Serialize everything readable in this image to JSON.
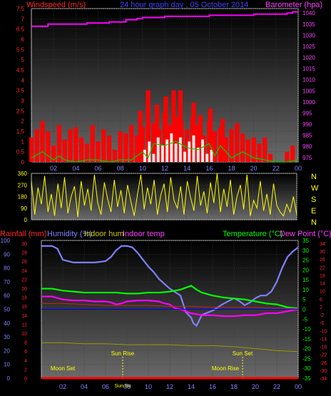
{
  "chart_data": [
    {
      "type": "bar",
      "title": "24 hour graph day , 05 October 2014",
      "left_label": "Windspeed (m/s)",
      "right_label": "Barometer (hpa)",
      "hour_labels": [
        "02",
        "04",
        "06",
        "08",
        "10",
        "12",
        "14",
        "16",
        "18",
        "20",
        "22",
        "00"
      ],
      "y_left_ticks": [
        "7.5",
        "7",
        "6.5",
        "6",
        "5.5",
        "5",
        "4.5",
        "4",
        "3.5",
        "3",
        "2.5",
        "2",
        "1.5",
        "1",
        "0.5",
        "0"
      ],
      "y_right_ticks": [
        "1040",
        "1035",
        "1030",
        "1025",
        "1020",
        "1015",
        "1010",
        "1005",
        "1000",
        "995",
        "990",
        "985",
        "980",
        "975"
      ],
      "ylim_left": [
        0,
        7.5
      ],
      "ylim_right": [
        973,
        1042
      ],
      "series": [
        {
          "kind": "bars",
          "color": "#ff0000",
          "x": [
            0,
            0.5,
            1,
            1.5,
            2,
            2.5,
            3,
            3.5,
            4,
            4.5,
            5,
            5.5,
            6,
            6.5,
            7,
            7.5,
            8,
            8.5,
            9,
            9.5,
            10,
            10.5,
            11,
            11.5,
            12,
            12.5,
            13,
            13.5,
            14,
            14.5,
            15,
            15.5,
            16,
            16.5,
            17,
            17.5,
            18,
            18.5,
            19,
            19.5,
            20,
            20.5,
            21,
            21.5,
            22,
            22.5,
            23,
            23.5,
            24
          ],
          "values": [
            1.2,
            1.6,
            2.0,
            1.5,
            0.8,
            1.8,
            1.1,
            1.6,
            1.7,
            1.2,
            0.9,
            1.8,
            1.0,
            1.6,
            1.3,
            0.6,
            1.5,
            1.4,
            1.8,
            1.3,
            1.7,
            2.0,
            1.9,
            1.6,
            2.4,
            1.8,
            2.2,
            2.0,
            1.6,
            2.2,
            1.8,
            1.3,
            2.0,
            1.5,
            1.7,
            1.2,
            1.6,
            1.9,
            1.4,
            1.1,
            1.2,
            0.9,
            1.2,
            0.4,
            0.0,
            0.0,
            0.5,
            0.8,
            0.0
          ]
        },
        {
          "kind": "bars",
          "color": "#ff0000",
          "x": [
            9.8,
            10.5,
            11.3,
            12.1,
            12.8,
            13.4,
            14.6,
            15.2,
            16.1,
            17.2
          ],
          "values": [
            2.5,
            3.5,
            2.8,
            3.2,
            3.5,
            3.5,
            2.9,
            2.3,
            2.6,
            2.1
          ]
        },
        {
          "kind": "bars",
          "color": "#ffffff",
          "x": [
            10.2,
            10.6,
            11.0,
            11.4,
            11.8,
            12.2,
            12.6,
            13.0,
            13.4,
            13.8,
            14.2,
            14.6,
            15.0,
            15.4,
            15.8,
            16.2
          ],
          "values": [
            0.6,
            1.0,
            0.4,
            1.2,
            0.8,
            1.1,
            1.4,
            0.9,
            1.2,
            0.5,
            1.0,
            1.3,
            0.7,
            1.1,
            0.4,
            0.6
          ]
        },
        {
          "kind": "line",
          "color": "#00cc00",
          "x": [
            0,
            1,
            2,
            2.5,
            3,
            4,
            5,
            6,
            7,
            8,
            9,
            10,
            10.5,
            11,
            12,
            13,
            14,
            15,
            16,
            16.5,
            17,
            18,
            19,
            20,
            21,
            22,
            23,
            24
          ],
          "values": [
            0.2,
            0.5,
            0.1,
            0.3,
            0.1,
            0.0,
            0.1,
            0.1,
            0.0,
            0.1,
            0.1,
            0.5,
            0.2,
            0.9,
            0.8,
            1.0,
            0.7,
            0.6,
            0.9,
            0.3,
            0.8,
            0.2,
            0.5,
            0.2,
            0.1,
            0.0,
            0.0,
            0.1
          ]
        },
        {
          "kind": "line",
          "axis": "right",
          "color": "#ff00ff",
          "step": true,
          "x": [
            0,
            1,
            1.5,
            2,
            5,
            7,
            8,
            8.5,
            9,
            9.5,
            10,
            12,
            14,
            16,
            18,
            20,
            22,
            23,
            23.5,
            24
          ],
          "values": [
            1034,
            1034,
            1035,
            1035,
            1035.5,
            1036,
            1036,
            1037,
            1037,
            1037.5,
            1038,
            1038.5,
            1038.5,
            1039,
            1039,
            1039.5,
            1039.5,
            1040,
            1040.5,
            1040.5
          ]
        }
      ]
    },
    {
      "type": "line",
      "y_ticks": [
        "360",
        "270",
        "180",
        "90",
        "0"
      ],
      "direction_labels": [
        "N",
        "W",
        "S",
        "E",
        "N"
      ],
      "hour_labels": [
        "02",
        "04",
        "06",
        "08",
        "10",
        "12",
        "14",
        "16",
        "18",
        "20",
        "22",
        "00"
      ],
      "ylim": [
        0,
        360
      ],
      "series": [
        {
          "color": "#ffff00",
          "x": [
            0,
            0.3,
            0.6,
            0.9,
            1.2,
            1.5,
            1.8,
            2.1,
            2.4,
            2.7,
            3,
            3.3,
            3.6,
            3.9,
            4.2,
            4.5,
            4.8,
            5.1,
            5.4,
            5.7,
            6,
            6.3,
            6.6,
            6.9,
            7.2,
            7.5,
            7.8,
            8.1,
            8.4,
            8.7,
            9,
            9.3,
            9.6,
            9.9,
            10.2,
            10.5,
            10.8,
            11.1,
            11.4,
            11.7,
            12,
            12.3,
            12.6,
            12.9,
            13.2,
            13.5,
            13.8,
            14.1,
            14.4,
            14.7,
            15,
            15.3,
            15.6,
            15.9,
            16.2,
            16.5,
            16.8,
            17.1,
            17.4,
            17.7,
            18,
            18.3,
            18.6,
            18.9,
            19.2,
            19.5,
            19.8,
            20.1,
            20.4,
            20.7,
            21,
            21.3,
            21.6,
            21.9,
            22.2,
            22.5,
            22.8,
            23.1,
            23.4,
            23.7,
            24
          ],
          "values": [
            300,
            40,
            250,
            120,
            340,
            60,
            200,
            30,
            280,
            90,
            330,
            50,
            180,
            260,
            20,
            300,
            110,
            240,
            70,
            350,
            130,
            40,
            290,
            160,
            60,
            310,
            100,
            230,
            50,
            270,
            140,
            30,
            200,
            350,
            80,
            250,
            120,
            310,
            40,
            190,
            280,
            60,
            330,
            150,
            90,
            260,
            40,
            300,
            170,
            70,
            340,
            110,
            220,
            50,
            290,
            130,
            360,
            60,
            240,
            100,
            310,
            40,
            180,
            270,
            80,
            350,
            30,
            150,
            90,
            300,
            70,
            200,
            40,
            280,
            110,
            60,
            30,
            120,
            60,
            180,
            40
          ]
        }
      ]
    },
    {
      "type": "line",
      "top_labels": {
        "rainfall": "Rainfall (mm)",
        "humidity": "Humidity (%)",
        "indoor_hum": "Indoor hum",
        "indoor_temp": "Indoor temp",
        "temperature": "Temperature (°C)",
        "dew_point": "Dew Point (°C)"
      },
      "y_humidity_ticks": [
        "100",
        "90",
        "80",
        "70",
        "60",
        "50",
        "40",
        "30",
        "20",
        "10",
        "0"
      ],
      "y_rain_ticks": [
        "30",
        "28",
        "26",
        "24",
        "22",
        "20",
        "18",
        "16",
        "14",
        "12",
        "10",
        "8",
        "6",
        "4",
        "2",
        "0"
      ],
      "y_temp_ticks": [
        "35",
        "30",
        "25",
        "20",
        "15",
        "10",
        "5",
        "0",
        "-5",
        "-10",
        "-15",
        "-20",
        "-25",
        "-30",
        "-35"
      ],
      "y_dew_ticks": [
        "34",
        "32",
        "30",
        "28",
        "26",
        "24",
        "22",
        "20",
        "18",
        "16",
        "14",
        "12",
        "10",
        "8",
        "6",
        "4",
        "2",
        "0",
        "-2",
        "-4",
        "-6",
        "-8",
        "-10",
        "-12",
        "-14",
        "-16",
        "-18",
        "-20",
        "-22",
        "-24",
        "-26",
        "-28",
        "-30",
        "-32",
        "-34"
      ],
      "hour_labels": [
        "02",
        "04",
        "06",
        "08",
        "10",
        "12",
        "14",
        "16",
        "18",
        "20",
        "22",
        "00"
      ],
      "annotations": {
        "moon_set_1": "Moon Set",
        "sun_rise": "Sun Rise",
        "sun_set": "Sun Set",
        "moon_set_2": "Moon Rise",
        "sun_bottom": "Sun Bu"
      },
      "ylim_humidity": [
        0,
        100
      ],
      "ylim_temp": [
        -35,
        35
      ],
      "series": [
        {
          "name": "Humidity (%)",
          "axis": "humidity",
          "color": "#8080ff",
          "x": [
            0,
            1,
            1.5,
            2,
            3,
            4,
            5,
            6,
            6.5,
            7,
            7.5,
            8,
            8.5,
            9,
            9.5,
            10,
            10.5,
            11,
            12,
            13,
            13.5,
            14,
            14.2,
            14.5,
            15,
            16,
            17,
            18,
            18.5,
            19,
            19.5,
            20,
            20.5,
            21,
            21.5,
            22,
            22.5,
            23,
            23.5,
            24
          ],
          "values": [
            96,
            96,
            94,
            86,
            84,
            84,
            84,
            85,
            88,
            93,
            96,
            96,
            95,
            91,
            86,
            81,
            77,
            72,
            65,
            60,
            48,
            44,
            40,
            38,
            46,
            49,
            54,
            58,
            56,
            53,
            55,
            58,
            60,
            60,
            63,
            70,
            80,
            88,
            92,
            95
          ]
        },
        {
          "name": "Temperature (°C)",
          "axis": "temp",
          "color": "#00ff00",
          "x": [
            0,
            1,
            2,
            3,
            4,
            5,
            6,
            7,
            8,
            9,
            10,
            11,
            12,
            13,
            13.5,
            14,
            14.5,
            15,
            16,
            17,
            18,
            19,
            20,
            21,
            22,
            23,
            24
          ],
          "values": [
            10.5,
            10.5,
            9.5,
            9,
            8.5,
            8.5,
            8.5,
            8.5,
            8,
            8,
            8.5,
            8.5,
            9,
            10,
            11,
            12,
            10,
            8.5,
            7,
            6,
            5.5,
            5,
            4,
            3,
            2.5,
            1,
            0.5
          ]
        },
        {
          "name": "Dew Point (°C)",
          "axis": "temp",
          "color": "#ff00ff",
          "x": [
            0,
            1,
            2,
            3,
            4,
            5,
            6,
            6.5,
            7,
            7.5,
            8,
            9,
            10,
            11,
            11.5,
            12,
            12.5,
            13,
            14,
            15,
            16,
            17,
            18,
            19,
            20,
            21,
            22,
            23,
            24
          ],
          "values": [
            6.5,
            6.5,
            5,
            4.5,
            4.5,
            4,
            4,
            3.5,
            2.5,
            3,
            4,
            4.5,
            4.5,
            4,
            3,
            2.5,
            0.5,
            0,
            -2,
            -3,
            -3,
            -3.5,
            -3.5,
            -3,
            -3,
            -2,
            -2,
            -1,
            0
          ]
        },
        {
          "name": "Indoor temp",
          "axis": "temp",
          "color": "#cc2222",
          "x": [
            0,
            2,
            4,
            6,
            8,
            10,
            12,
            14,
            16,
            18,
            20,
            22,
            24
          ],
          "values": [
            3,
            3,
            2.5,
            2,
            2,
            2,
            1.5,
            1.5,
            1,
            1,
            1,
            0.5,
            0.5
          ]
        },
        {
          "name": "Indoor hum",
          "axis": "temp",
          "color": "#999900",
          "x": [
            0,
            2,
            4,
            6,
            8,
            10,
            12,
            14,
            16,
            18,
            20,
            22,
            24
          ],
          "values": [
            -17,
            -17,
            -17.5,
            -17.5,
            -18,
            -18,
            -18,
            -18.5,
            -18.5,
            -19,
            -20,
            -21,
            -21.5
          ]
        },
        {
          "name": "Rainfall (mm)",
          "axis": "humidity",
          "color": "#ff0000",
          "x": [
            0,
            24
          ],
          "values": [
            0,
            0
          ]
        },
        {
          "name": "Zero line",
          "axis": "temp",
          "color": "#0000ff",
          "x": [
            0,
            24
          ],
          "values": [
            0,
            0
          ]
        }
      ]
    }
  ]
}
